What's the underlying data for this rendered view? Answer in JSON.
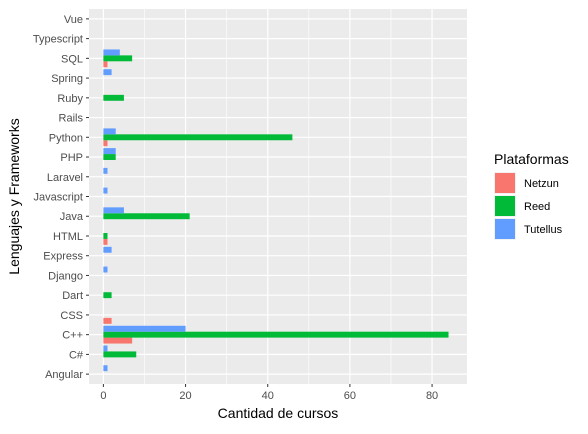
{
  "chart_data": {
    "type": "bar",
    "orientation": "horizontal",
    "position": "dodge",
    "xlabel": "Cantidad de cursos",
    "ylabel": "Lenguajes y Frameworks",
    "xlim": [
      -3.5,
      88.5
    ],
    "xticks": [
      0,
      20,
      40,
      60,
      80
    ],
    "grid": true,
    "categories": [
      "Angular",
      "C#",
      "C++",
      "CSS",
      "Dart",
      "Django",
      "Express",
      "HTML",
      "Java",
      "Javascript",
      "Laravel",
      "PHP",
      "Python",
      "Rails",
      "Ruby",
      "Spring",
      "SQL",
      "Typescript",
      "Vue"
    ],
    "legend": {
      "title": "Plataformas",
      "position": "right"
    },
    "series": [
      {
        "name": "Netzun",
        "color": "#F8766D",
        "values": [
          0,
          0,
          7,
          2,
          0,
          0,
          0,
          1,
          0,
          0,
          0,
          0,
          1,
          0,
          0,
          0,
          1,
          0,
          0
        ]
      },
      {
        "name": "Reed",
        "color": "#00BA38",
        "values": [
          0,
          8,
          84,
          0,
          2,
          0,
          0,
          1,
          21,
          0,
          0,
          3,
          46,
          0,
          5,
          0,
          7,
          0,
          0
        ]
      },
      {
        "name": "Tutellus",
        "color": "#619CFF",
        "values": [
          1,
          1,
          20,
          0,
          0,
          1,
          2,
          0,
          5,
          1,
          1,
          3,
          3,
          0,
          0,
          2,
          4,
          0,
          0
        ]
      }
    ]
  }
}
